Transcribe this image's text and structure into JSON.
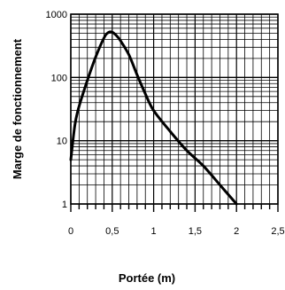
{
  "chart_data": {
    "type": "line",
    "xlabel": "Portée (m)",
    "ylabel": "Marge de fonctionnement",
    "xlim": [
      0,
      2.5
    ],
    "ylim": [
      1,
      1000
    ],
    "yscale": "log",
    "grid": true,
    "x_ticks": [
      0,
      0.5,
      1,
      1.5,
      2,
      2.5
    ],
    "x_tick_labels": [
      "0",
      "0,5",
      "1",
      "1,5",
      "2",
      "2,5"
    ],
    "y_ticks": [
      1,
      10,
      100,
      1000
    ],
    "y_tick_labels": [
      "1",
      "10",
      "100",
      "1000"
    ],
    "series": [
      {
        "x": [
          0,
          0.05,
          0.1,
          0.2,
          0.3,
          0.4,
          0.45,
          0.5,
          0.55,
          0.6,
          0.7,
          0.8,
          0.9,
          1.0,
          1.2,
          1.4,
          1.6,
          1.8,
          2.0
        ],
        "y": [
          5,
          18,
          35,
          90,
          210,
          420,
          510,
          520,
          460,
          380,
          230,
          110,
          55,
          30,
          14,
          7,
          4,
          2,
          1
        ],
        "color": "#000000"
      }
    ]
  }
}
